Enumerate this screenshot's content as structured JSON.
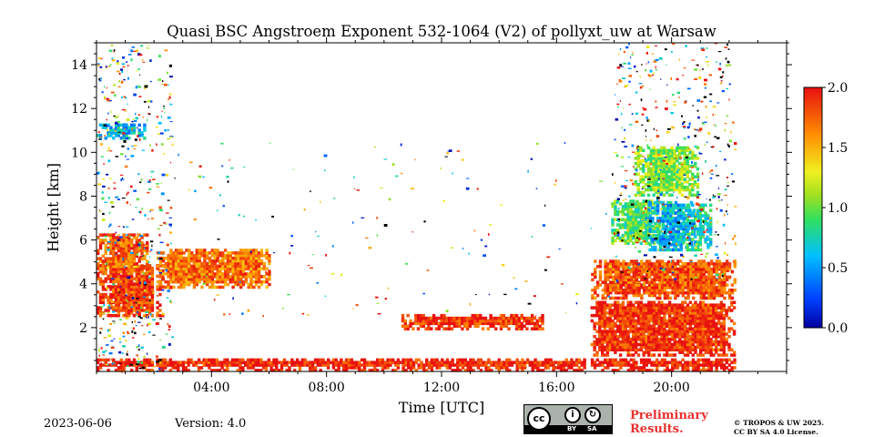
{
  "chart_data": {
    "type": "heatmap",
    "title": "Quasi BSC Angstroem Exponent 532-1064 (V2) of pollyxt_uw at Warsaw",
    "xlabel": "Time [UTC]",
    "ylabel": "Height [km]",
    "xlim_hours": [
      0.0,
      24.0
    ],
    "ylim_km": [
      0.0,
      15.0
    ],
    "x_ticks": [
      {
        "hour": 4,
        "label": "04:00"
      },
      {
        "hour": 8,
        "label": "08:00"
      },
      {
        "hour": 12,
        "label": "12:00"
      },
      {
        "hour": 16,
        "label": "16:00"
      },
      {
        "hour": 20,
        "label": "20:00"
      }
    ],
    "y_ticks": [
      {
        "km": 2,
        "label": "2"
      },
      {
        "km": 4,
        "label": "4"
      },
      {
        "km": 6,
        "label": "6"
      },
      {
        "km": 8,
        "label": "8"
      },
      {
        "km": 10,
        "label": "10"
      },
      {
        "km": 12,
        "label": "12"
      },
      {
        "km": 14,
        "label": "14"
      }
    ],
    "colorbar": {
      "colormap": "jet",
      "vmin": 0.0,
      "vmax": 2.0,
      "ticks": [
        {
          "value": 0.0,
          "label": "0.0"
        },
        {
          "value": 0.5,
          "label": "0.5"
        },
        {
          "value": 1.0,
          "label": "1.0"
        },
        {
          "value": 1.5,
          "label": "1.5"
        },
        {
          "value": 2.0,
          "label": "2.0"
        }
      ]
    },
    "data_gaps_hours": [
      [
        1.95,
        2.05
      ],
      [
        16.95,
        17.1
      ]
    ],
    "data_end_hour": 22.2,
    "layers": [
      {
        "name": "near-surface layer",
        "t0": 0.0,
        "t1": 22.2,
        "h0": 0.0,
        "h1": 0.5,
        "value": 1.95
      },
      {
        "name": "boundary layer morning",
        "t0": 0.0,
        "t1": 2.3,
        "h0": 2.5,
        "h1": 4.8,
        "value": 1.85
      },
      {
        "name": "elevated aerosol morning",
        "t0": 0.0,
        "t1": 1.8,
        "h0": 4.5,
        "h1": 6.3,
        "value": 1.75
      },
      {
        "name": "cirrus morning",
        "t0": 0.0,
        "t1": 1.7,
        "h0": 10.6,
        "h1": 11.3,
        "value": 0.6
      },
      {
        "name": "residual layer",
        "t0": 2.0,
        "t1": 6.0,
        "h0": 3.8,
        "h1": 5.5,
        "value": 1.7
      },
      {
        "name": "noon boundary layer",
        "t0": 10.6,
        "t1": 15.5,
        "h0": 1.9,
        "h1": 2.6,
        "value": 1.9
      },
      {
        "name": "evening boundary layer",
        "t0": 17.0,
        "t1": 22.2,
        "h0": 0.7,
        "h1": 3.2,
        "value": 1.9
      },
      {
        "name": "evening aerosol layer",
        "t0": 17.2,
        "t1": 22.2,
        "h0": 3.3,
        "h1": 5.0,
        "value": 1.8
      },
      {
        "name": "evening cloud 1",
        "t0": 17.9,
        "t1": 19.6,
        "h0": 5.8,
        "h1": 7.8,
        "value": 0.95
      },
      {
        "name": "evening cloud 2",
        "t0": 19.2,
        "t1": 20.8,
        "h0": 5.5,
        "h1": 7.7,
        "value": 0.6
      },
      {
        "name": "evening cloud 3",
        "t0": 20.5,
        "t1": 21.4,
        "h0": 5.5,
        "h1": 7.6,
        "value": 0.75
      },
      {
        "name": "evening upper cloud",
        "t0": 18.7,
        "t1": 20.9,
        "h0": 8.0,
        "h1": 10.2,
        "value": 1.05
      }
    ]
  },
  "footer": {
    "date": "2023-06-06",
    "version": "Version: 4.0",
    "preliminary_line1": "Preliminary",
    "preliminary_line2": "Results.",
    "copyright_line1": "© TROPOS & UW 2025.",
    "copyright_line2": "CC BY SA 4.0 License."
  },
  "license_badge": {
    "cc": "cc",
    "by": "BY",
    "sa": "SA",
    "strip_color": "#000000",
    "badge_color": "#aab2ab"
  }
}
